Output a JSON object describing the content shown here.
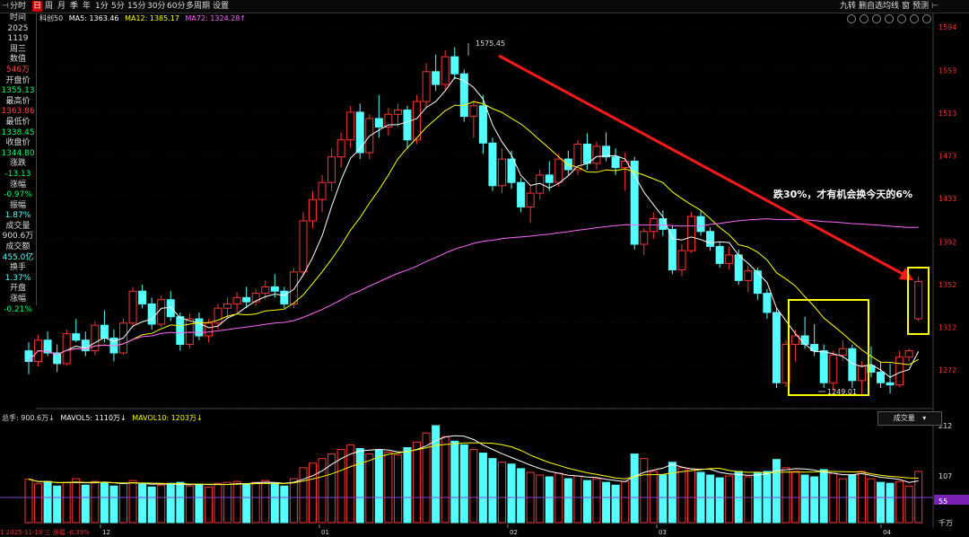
{
  "toolbar": {
    "left_items": [
      "分时",
      "日",
      "周",
      "月",
      "季",
      "年",
      "1分",
      "5分",
      "15分",
      "30分",
      "60分",
      "多周期",
      "设置"
    ],
    "active_item": "日",
    "right_items": [
      "九转",
      "删自选",
      "均线",
      "窗",
      "预测"
    ]
  },
  "indicators": {
    "stock": "科创50",
    "ma5_label": "MA5: 1363.46",
    "ma12_label": "MA12: 1385.17",
    "ma72_label": "MA72: 1324.28↑"
  },
  "side_panel": [
    {
      "label": "时间",
      "value": "2025"
    },
    {
      "label": "",
      "value": "1119"
    },
    {
      "label": "",
      "value": "周三"
    },
    {
      "label": "数值",
      "value": "546万"
    },
    {
      "label": "开盘价",
      "value": "1355.13"
    },
    {
      "label": "最高价",
      "value": "1363.86"
    },
    {
      "label": "最低价",
      "value": "1338.45"
    },
    {
      "label": "收盘价",
      "value": "1344.80"
    },
    {
      "label": "涨跌",
      "value": "-13.13"
    },
    {
      "label": "涨幅",
      "value": "-0.97%"
    },
    {
      "label": "振幅",
      "value": "1.87%"
    },
    {
      "label": "成交量",
      "value": "900.6万"
    },
    {
      "label": "成交额",
      "value": "455.0亿"
    },
    {
      "label": "换手",
      "value": "1.37%"
    },
    {
      "label": "开盘",
      "value": ""
    },
    {
      "label": "涨幅",
      "value": "-0.21%"
    }
  ],
  "price_axis": [
    "1594",
    "1553",
    "1513",
    "1473",
    "1433",
    "1392",
    "1352",
    "1312",
    "1272"
  ],
  "volume_axis": [
    "212",
    "107",
    "55",
    "千万"
  ],
  "date_labels": [
    "12",
    "01",
    "02",
    "03",
    "04"
  ],
  "annotations": {
    "high_label": "1575.45",
    "low_label": "1249.01",
    "note": "跌30%，才有机会换今天的6%"
  },
  "volume_title": {
    "total": "总手: 900.6万↓",
    "mavol5": "MAVOL5: 1110万↓",
    "mavol10": "MAVOL10: 1203万↓"
  },
  "volume_dropdown": "成交量",
  "status_bar": "1 2025-11-19 三 涨幅 -0.39%",
  "colors": {
    "up": "#ff3232",
    "down": "#54ffff",
    "ma5": "#ffffff",
    "ma12": "#ffff00",
    "ma72": "#ff66ff",
    "arrow": "#ff1a1a",
    "box": "#ffff00"
  },
  "chart_data": {
    "type": "candlestick",
    "candles": [
      [
        1290,
        1298,
        1268,
        1280
      ],
      [
        1280,
        1305,
        1275,
        1300
      ],
      [
        1300,
        1308,
        1285,
        1288
      ],
      [
        1288,
        1296,
        1270,
        1278
      ],
      [
        1278,
        1310,
        1276,
        1306
      ],
      [
        1306,
        1320,
        1298,
        1300
      ],
      [
        1300,
        1308,
        1285,
        1290
      ],
      [
        1290,
        1318,
        1286,
        1314
      ],
      [
        1314,
        1328,
        1298,
        1302
      ],
      [
        1302,
        1310,
        1280,
        1288
      ],
      [
        1288,
        1320,
        1286,
        1316
      ],
      [
        1316,
        1350,
        1312,
        1346
      ],
      [
        1346,
        1352,
        1330,
        1334
      ],
      [
        1334,
        1340,
        1310,
        1315
      ],
      [
        1315,
        1342,
        1312,
        1338
      ],
      [
        1338,
        1346,
        1318,
        1322
      ],
      [
        1322,
        1326,
        1290,
        1296
      ],
      [
        1296,
        1325,
        1292,
        1320
      ],
      [
        1320,
        1326,
        1300,
        1304
      ],
      [
        1304,
        1320,
        1298,
        1316
      ],
      [
        1316,
        1334,
        1310,
        1330
      ],
      [
        1330,
        1340,
        1320,
        1334
      ],
      [
        1334,
        1345,
        1326,
        1340
      ],
      [
        1340,
        1350,
        1330,
        1336
      ],
      [
        1336,
        1348,
        1332,
        1344
      ],
      [
        1344,
        1356,
        1338,
        1350
      ],
      [
        1350,
        1362,
        1340,
        1346
      ],
      [
        1346,
        1350,
        1330,
        1334
      ],
      [
        1334,
        1368,
        1330,
        1364
      ],
      [
        1364,
        1420,
        1360,
        1412
      ],
      [
        1412,
        1440,
        1405,
        1432
      ],
      [
        1432,
        1455,
        1420,
        1448
      ],
      [
        1448,
        1480,
        1440,
        1472
      ],
      [
        1472,
        1495,
        1462,
        1488
      ],
      [
        1488,
        1520,
        1480,
        1514
      ],
      [
        1514,
        1522,
        1470,
        1476
      ],
      [
        1476,
        1512,
        1470,
        1508
      ],
      [
        1508,
        1530,
        1490,
        1500
      ],
      [
        1500,
        1518,
        1492,
        1512
      ],
      [
        1512,
        1522,
        1500,
        1516
      ],
      [
        1516,
        1520,
        1480,
        1488
      ],
      [
        1488,
        1530,
        1484,
        1524
      ],
      [
        1524,
        1560,
        1518,
        1552
      ],
      [
        1552,
        1568,
        1534,
        1540
      ],
      [
        1540,
        1572,
        1535,
        1566
      ],
      [
        1566,
        1575,
        1545,
        1550
      ],
      [
        1550,
        1554,
        1505,
        1510
      ],
      [
        1510,
        1525,
        1490,
        1520
      ],
      [
        1520,
        1530,
        1475,
        1485
      ],
      [
        1485,
        1490,
        1440,
        1445
      ],
      [
        1445,
        1480,
        1438,
        1470
      ],
      [
        1470,
        1478,
        1442,
        1448
      ],
      [
        1448,
        1452,
        1420,
        1425
      ],
      [
        1425,
        1445,
        1410,
        1438
      ],
      [
        1438,
        1460,
        1432,
        1455
      ],
      [
        1455,
        1468,
        1440,
        1448
      ],
      [
        1448,
        1475,
        1444,
        1470
      ],
      [
        1470,
        1478,
        1455,
        1460
      ],
      [
        1460,
        1488,
        1455,
        1484
      ],
      [
        1484,
        1494,
        1460,
        1466
      ],
      [
        1466,
        1486,
        1460,
        1482
      ],
      [
        1482,
        1495,
        1468,
        1472
      ],
      [
        1472,
        1480,
        1455,
        1462
      ],
      [
        1462,
        1476,
        1440,
        1468
      ],
      [
        1468,
        1472,
        1385,
        1390
      ],
      [
        1390,
        1405,
        1380,
        1402
      ],
      [
        1402,
        1420,
        1395,
        1414
      ],
      [
        1414,
        1422,
        1398,
        1404
      ],
      [
        1404,
        1408,
        1362,
        1366
      ],
      [
        1366,
        1390,
        1360,
        1384
      ],
      [
        1384,
        1420,
        1382,
        1416
      ],
      [
        1416,
        1422,
        1398,
        1402
      ],
      [
        1402,
        1406,
        1384,
        1388
      ],
      [
        1388,
        1392,
        1368,
        1372
      ],
      [
        1372,
        1388,
        1366,
        1380
      ],
      [
        1380,
        1385,
        1352,
        1356
      ],
      [
        1356,
        1370,
        1345,
        1365
      ],
      [
        1365,
        1368,
        1338,
        1344
      ],
      [
        1344,
        1348,
        1320,
        1326
      ],
      [
        1326,
        1330,
        1255,
        1260
      ],
      [
        1260,
        1300,
        1256,
        1296
      ],
      [
        1296,
        1310,
        1280,
        1304
      ],
      [
        1304,
        1322,
        1292,
        1296
      ],
      [
        1296,
        1315,
        1285,
        1290
      ],
      [
        1290,
        1296,
        1255,
        1260
      ],
      [
        1260,
        1290,
        1252,
        1286
      ],
      [
        1286,
        1300,
        1280,
        1292
      ],
      [
        1292,
        1296,
        1255,
        1262
      ],
      [
        1262,
        1280,
        1249,
        1276
      ],
      [
        1276,
        1294,
        1265,
        1270
      ],
      [
        1270,
        1280,
        1255,
        1260
      ],
      [
        1260,
        1278,
        1250,
        1258
      ],
      [
        1258,
        1290,
        1256,
        1284
      ],
      [
        1284,
        1292,
        1280,
        1290
      ],
      [
        1320,
        1360,
        1318,
        1355
      ]
    ],
    "volume": [
      [
        95,
        0
      ],
      [
        85,
        0
      ],
      [
        90,
        1
      ],
      [
        80,
        1
      ],
      [
        88,
        0
      ],
      [
        96,
        0
      ],
      [
        82,
        1
      ],
      [
        90,
        0
      ],
      [
        88,
        1
      ],
      [
        80,
        1
      ],
      [
        86,
        0
      ],
      [
        92,
        0
      ],
      [
        84,
        1
      ],
      [
        78,
        1
      ],
      [
        82,
        0
      ],
      [
        86,
        1
      ],
      [
        88,
        1
      ],
      [
        80,
        0
      ],
      [
        84,
        1
      ],
      [
        78,
        0
      ],
      [
        86,
        0
      ],
      [
        88,
        0
      ],
      [
        90,
        0
      ],
      [
        84,
        1
      ],
      [
        88,
        0
      ],
      [
        92,
        0
      ],
      [
        86,
        1
      ],
      [
        80,
        1
      ],
      [
        96,
        0
      ],
      [
        120,
        0
      ],
      [
        130,
        0
      ],
      [
        140,
        0
      ],
      [
        150,
        0
      ],
      [
        160,
        0
      ],
      [
        170,
        0
      ],
      [
        162,
        1
      ],
      [
        150,
        0
      ],
      [
        158,
        1
      ],
      [
        154,
        0
      ],
      [
        148,
        0
      ],
      [
        164,
        1
      ],
      [
        176,
        0
      ],
      [
        196,
        0
      ],
      [
        212,
        1
      ],
      [
        188,
        0
      ],
      [
        178,
        1
      ],
      [
        170,
        1
      ],
      [
        160,
        0
      ],
      [
        152,
        1
      ],
      [
        140,
        1
      ],
      [
        132,
        0
      ],
      [
        128,
        1
      ],
      [
        118,
        1
      ],
      [
        110,
        0
      ],
      [
        104,
        0
      ],
      [
        100,
        1
      ],
      [
        108,
        0
      ],
      [
        96,
        1
      ],
      [
        102,
        0
      ],
      [
        92,
        1
      ],
      [
        96,
        0
      ],
      [
        88,
        1
      ],
      [
        82,
        1
      ],
      [
        90,
        0
      ],
      [
        150,
        1
      ],
      [
        140,
        0
      ],
      [
        112,
        0
      ],
      [
        104,
        1
      ],
      [
        132,
        1
      ],
      [
        120,
        0
      ],
      [
        118,
        0
      ],
      [
        110,
        1
      ],
      [
        104,
        1
      ],
      [
        98,
        1
      ],
      [
        102,
        0
      ],
      [
        112,
        1
      ],
      [
        100,
        0
      ],
      [
        108,
        1
      ],
      [
        112,
        1
      ],
      [
        138,
        1
      ],
      [
        120,
        0
      ],
      [
        112,
        0
      ],
      [
        104,
        1
      ],
      [
        100,
        1
      ],
      [
        116,
        1
      ],
      [
        108,
        0
      ],
      [
        96,
        0
      ],
      [
        104,
        1
      ],
      [
        112,
        0
      ],
      [
        96,
        0
      ],
      [
        88,
        1
      ],
      [
        86,
        1
      ],
      [
        90,
        0
      ],
      [
        80,
        0
      ],
      [
        112,
        0
      ]
    ]
  }
}
